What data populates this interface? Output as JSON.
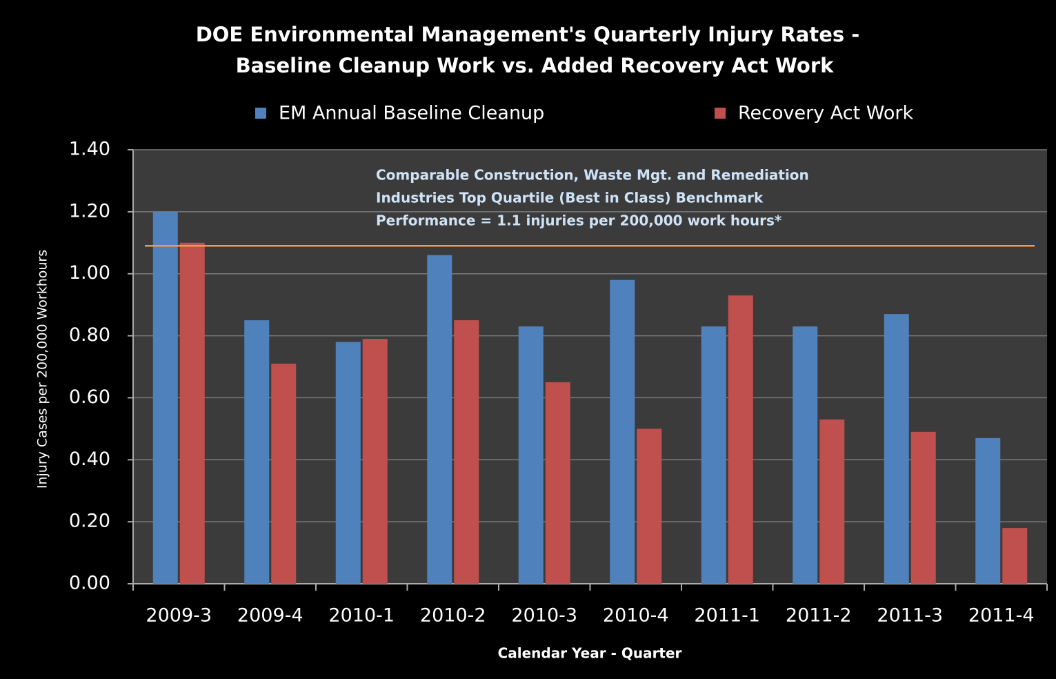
{
  "chart_data": {
    "type": "bar",
    "title": [
      "DOE Environmental Management's Quarterly Injury Rates -",
      "Baseline Cleanup Work vs. Added Recovery Act Work"
    ],
    "y_label": "Injury Cases per 200,000 Workhours",
    "x_label": "Calendar Year - Quarter",
    "annotation": [
      "Comparable Construction, Waste Mgt. and Remediation",
      "Industries Top Quartile  (Best in Class) Benchmark",
      "Performance  =  1.1 injuries per 200,000 work hours*"
    ],
    "categories": [
      "2009-3",
      "2009-4",
      "2010-1",
      "2010-2",
      "2010-3",
      "2010-4",
      "2011-1",
      "2011-2",
      "2011-3",
      "2011-4"
    ],
    "series": [
      {
        "name": "EM Annual Baseline Cleanup",
        "color": "#4f81bd",
        "values": [
          1.2,
          0.85,
          0.78,
          1.06,
          0.83,
          0.98,
          0.83,
          0.83,
          0.87,
          0.47
        ]
      },
      {
        "name": "Recovery Act Work",
        "color": "#c0504d",
        "values": [
          1.1,
          0.71,
          0.79,
          0.85,
          0.65,
          0.5,
          0.93,
          0.53,
          0.49,
          0.18
        ]
      }
    ],
    "reference_line": {
      "value": 1.09,
      "color": "#f79646"
    },
    "ylim": [
      0,
      1.4
    ],
    "yticks": [
      {
        "value": 0,
        "label": "0.00"
      },
      {
        "value": 0.2,
        "label": "0.20"
      },
      {
        "value": 0.4,
        "label": "0.40"
      },
      {
        "value": 0.6,
        "label": "0.60"
      },
      {
        "value": 0.8,
        "label": "0.80"
      },
      {
        "value": 1.0,
        "label": "1.00"
      },
      {
        "value": 1.2,
        "label": "1.20"
      },
      {
        "value": 1.4,
        "label": "1.40"
      }
    ],
    "grid": true,
    "legend": "top"
  }
}
